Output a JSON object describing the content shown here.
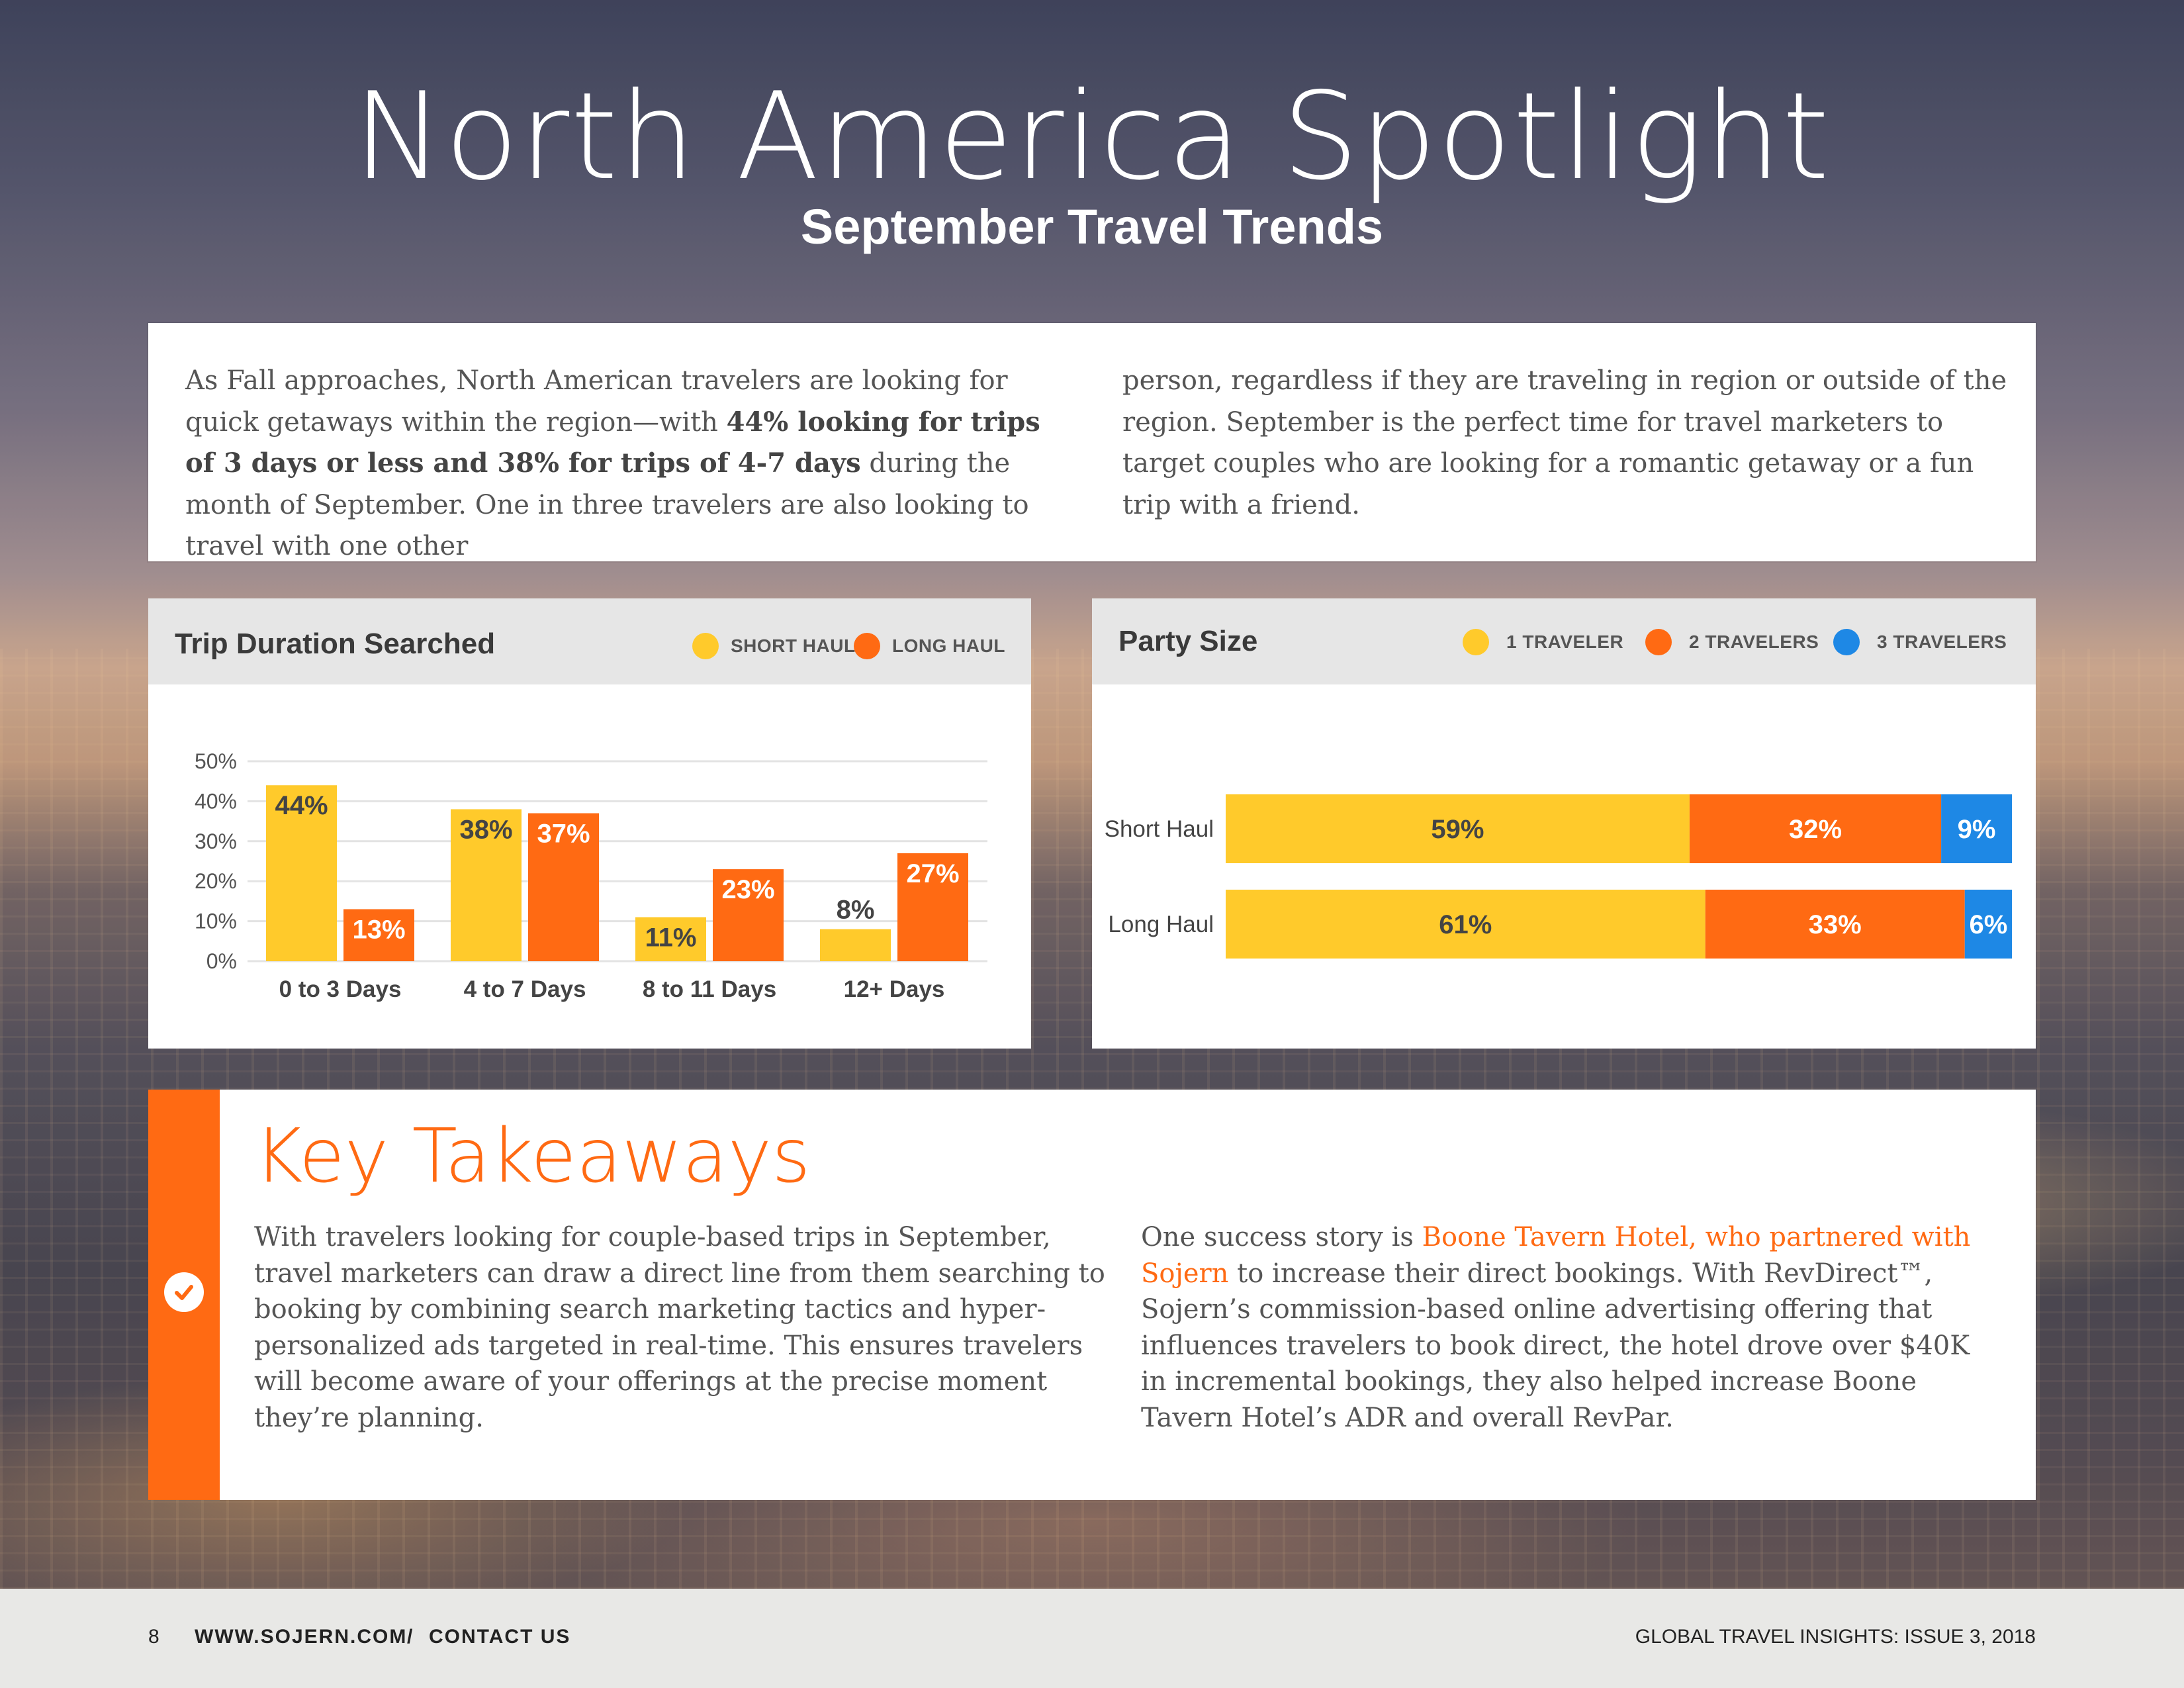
{
  "header": {
    "title": "North America Spotlight",
    "subtitle": "September Travel Trends"
  },
  "intro": {
    "left_p1": "As Fall approaches, North American travelers are looking for quick getaways within the region—with ",
    "left_bold": "44% looking for trips of 3 days or less and 38% for trips of 4-7 days",
    "left_p2": " during the month of September. One in three travelers are also looking to travel with one other",
    "right": "person, regardless if they are traveling in region or outside of the region. September is the perfect time for travel marketers to target couples who are looking for a romantic getaway or a fun trip with a friend."
  },
  "chart_data": [
    {
      "type": "bar",
      "title": "Trip Duration Searched",
      "categories": [
        "0 to 3 Days",
        "4 to 7 Days",
        "8 to 11 Days",
        "12+ Days"
      ],
      "series": [
        {
          "name": "SHORT HAUL",
          "values": [
            44,
            38,
            11,
            8
          ],
          "color": "#ffca2b"
        },
        {
          "name": "LONG HAUL",
          "values": [
            13,
            37,
            23,
            27
          ],
          "color": "#ff6a13"
        }
      ],
      "yticks": [
        "0%",
        "10%",
        "20%",
        "30%",
        "40%",
        "50%"
      ],
      "ylim": [
        0,
        50
      ],
      "xlabel": "",
      "ylabel": ""
    },
    {
      "type": "bar",
      "orientation": "horizontal-stacked",
      "title": "Party Size",
      "categories": [
        "Short Haul",
        "Long Haul"
      ],
      "series": [
        {
          "name": "1 TRAVELER",
          "values": [
            59,
            61
          ],
          "color": "#ffca2b"
        },
        {
          "name": "2 TRAVELERS",
          "values": [
            32,
            33
          ],
          "color": "#ff6a13"
        },
        {
          "name": "3 TRAVELERS",
          "values": [
            9,
            6
          ],
          "color": "#1e88e5"
        }
      ],
      "xlim": [
        0,
        100
      ]
    }
  ],
  "takeaways": {
    "title": "Key Takeaways",
    "left": "With travelers looking for couple-based trips in September, travel marketers can draw a direct line from them searching to booking by combining search marketing tactics and hyper-personalized ads targeted in real-time. This ensures travelers will become aware of your offerings at the precise moment they’re planning.",
    "right_p1": "One success story is ",
    "right_link": "Boone Tavern Hotel, who partnered with Sojern",
    "right_p2": " to increase their direct bookings. With RevDirect™, Sojern’s commission-based online advertising offering that influences travelers to book direct, the hotel drove over $40K in incremental bookings, they also helped increase Boone Tavern Hotel’s ADR and overall RevPar."
  },
  "footer": {
    "page_number": "8",
    "website": "WWW.SOJERN.COM",
    "separator": "/",
    "contact": "CONTACT US",
    "issue": "GLOBAL TRAVEL INSIGHTS: ISSUE 3, 2018"
  }
}
